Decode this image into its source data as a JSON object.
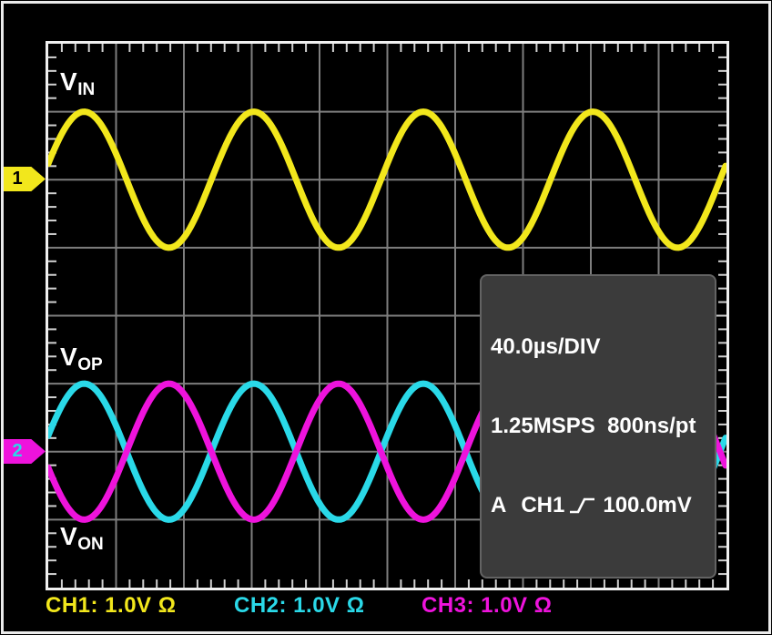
{
  "screen": {
    "signal_labels": [
      {
        "main": "V",
        "sub": "IN"
      },
      {
        "main": "V",
        "sub": "OP"
      },
      {
        "main": "V",
        "sub": "ON"
      }
    ],
    "markers": [
      {
        "number": "1",
        "color": "#f2e71c",
        "text_color": "#000000"
      },
      {
        "number": "2",
        "color": "#ee13dc",
        "text_color": "#2ad9e8"
      }
    ],
    "info_box": {
      "timebase": "40.0µs/DIV",
      "sampling": "1.25MSPS  800ns/pt",
      "trigger_mode": "A",
      "trigger_source": "CH1",
      "trigger_level": "100.0mV"
    },
    "channel_readouts": [
      {
        "label": "CH1: 1.0V Ω",
        "color": "#f2e71c"
      },
      {
        "label": "CH2: 1.0V Ω",
        "color": "#2ad9e8"
      },
      {
        "label": "CH3: 1.0V Ω",
        "color": "#ee13dc"
      }
    ]
  },
  "chart_data": {
    "type": "line",
    "title": "Oscilloscope capture: input sine VIN and differential outputs VOP / VON",
    "x_axis": {
      "divisions": 10,
      "time_per_division_us": 40.0,
      "minor_ticks_per_division": 5,
      "label": "40.0µs/DIV"
    },
    "y_axis": {
      "divisions": 8,
      "volts_per_division": 1.0,
      "minor_ticks_per_division": 5
    },
    "acquisition": {
      "sample_rate": "1.25MSPS",
      "sample_interval": "800ns/pt"
    },
    "trigger": {
      "mode": "A",
      "source": "CH1",
      "edge": "rising",
      "level": "100.0mV"
    },
    "grid_color": "#7e7e7e",
    "tick_color": "#d2d2d2",
    "series": [
      {
        "name": "VIN",
        "channel": "CH1",
        "color": "#f2e71c",
        "center_div": 2,
        "amplitude_div": 1,
        "period_div": 2.5,
        "peak_x_div": 0.53,
        "inverted": false
      },
      {
        "name": "VOP",
        "channel": "CH2",
        "color": "#2ad9e8",
        "center_div": 6,
        "amplitude_div": 1,
        "period_div": 2.5,
        "peak_x_div": 0.53,
        "inverted": false
      },
      {
        "name": "VON",
        "channel": "CH3",
        "color": "#ee13dc",
        "center_div": 6,
        "amplitude_div": 1,
        "period_div": 2.5,
        "peak_x_div": 0.53,
        "inverted": true
      }
    ]
  }
}
